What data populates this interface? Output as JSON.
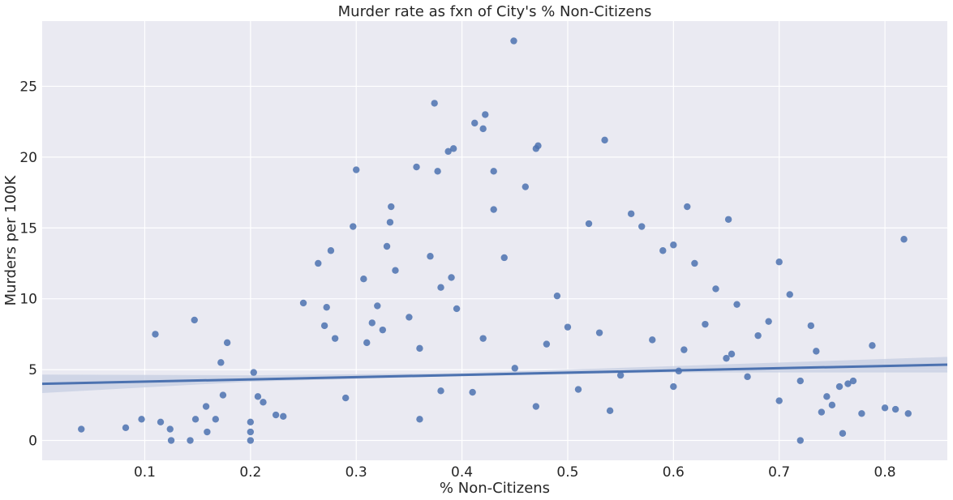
{
  "chart_data": {
    "type": "scatter",
    "title": "Murder rate as fxn of City's % Non-Citizens",
    "xlabel": "% Non-Citizens",
    "ylabel": "Murders per 100K",
    "xlim": [
      0.003,
      0.859
    ],
    "ylim": [
      -1.4,
      29.6
    ],
    "xticks": [
      0.1,
      0.2,
      0.3,
      0.4,
      0.5,
      0.6,
      0.7,
      0.8
    ],
    "xtick_labels": [
      "0.1",
      "0.2",
      "0.3",
      "0.4",
      "0.5",
      "0.6",
      "0.7",
      "0.8"
    ],
    "yticks": [
      0,
      5,
      10,
      15,
      20,
      25
    ],
    "ytick_labels": [
      "0",
      "5",
      "10",
      "15",
      "20",
      "25"
    ],
    "grid": true,
    "colors": {
      "point": "#4c72b0",
      "line": "#4c72b0",
      "band": "#c5cde2",
      "background": "#eaeaf2",
      "grid": "#ffffff",
      "text": "#262626"
    },
    "regression": {
      "x": [
        0.003,
        0.859
      ],
      "y": [
        4.0,
        5.35
      ]
    },
    "confidence_band": {
      "x": [
        0.003,
        0.2,
        0.4,
        0.6,
        0.859
      ],
      "lower": [
        3.35,
        4.15,
        4.55,
        4.8,
        4.8
      ],
      "upper": [
        4.65,
        4.6,
        4.75,
        5.25,
        5.9
      ]
    },
    "points": {
      "x": [
        0.04,
        0.082,
        0.097,
        0.11,
        0.115,
        0.124,
        0.125,
        0.143,
        0.147,
        0.148,
        0.158,
        0.159,
        0.167,
        0.172,
        0.174,
        0.178,
        0.2,
        0.2,
        0.2,
        0.203,
        0.207,
        0.212,
        0.224,
        0.231,
        0.264,
        0.272,
        0.276,
        0.297,
        0.3,
        0.307,
        0.333,
        0.357,
        0.374,
        0.377,
        0.387,
        0.392,
        0.412,
        0.42,
        0.422,
        0.43,
        0.449,
        0.47,
        0.472,
        0.535,
        0.6,
        0.613,
        0.652,
        0.818,
        0.822,
        0.8,
        0.788,
        0.75,
        0.735,
        0.72,
        0.332,
        0.329,
        0.337,
        0.37,
        0.38,
        0.39,
        0.395,
        0.43,
        0.44,
        0.46,
        0.49,
        0.52,
        0.56,
        0.57,
        0.59,
        0.62,
        0.64,
        0.66,
        0.7,
        0.71,
        0.73,
        0.25,
        0.27,
        0.28,
        0.29,
        0.31,
        0.315,
        0.32,
        0.325,
        0.35,
        0.36,
        0.42,
        0.48,
        0.5,
        0.53,
        0.58,
        0.61,
        0.63,
        0.655,
        0.68,
        0.69,
        0.6,
        0.36,
        0.38,
        0.41,
        0.47,
        0.51,
        0.54,
        0.67,
        0.7,
        0.72,
        0.74,
        0.745,
        0.757,
        0.76,
        0.765,
        0.77,
        0.778,
        0.81,
        0.45,
        0.55,
        0.65,
        0.605
      ],
      "y": [
        0.8,
        0.9,
        1.5,
        7.5,
        1.3,
        0.8,
        0.0,
        0.0,
        8.5,
        1.5,
        2.4,
        0.6,
        1.5,
        5.5,
        3.2,
        6.9,
        1.3,
        0.6,
        0.0,
        4.8,
        3.1,
        2.7,
        1.8,
        1.7,
        12.5,
        9.4,
        13.4,
        15.1,
        19.1,
        11.4,
        16.5,
        19.3,
        23.8,
        19.0,
        20.4,
        20.6,
        22.4,
        22.0,
        23.0,
        19.0,
        28.2,
        20.6,
        20.8,
        21.2,
        13.8,
        16.5,
        15.6,
        14.2,
        1.9,
        2.3,
        6.7,
        2.5,
        6.3,
        0.0,
        15.4,
        13.7,
        12.0,
        13.0,
        10.8,
        11.5,
        9.3,
        16.3,
        12.9,
        17.9,
        10.2,
        15.3,
        16.0,
        15.1,
        13.4,
        12.5,
        10.7,
        9.6,
        12.6,
        10.3,
        8.1,
        9.7,
        8.1,
        7.2,
        3.0,
        6.9,
        8.3,
        9.5,
        7.8,
        8.7,
        6.5,
        7.2,
        6.8,
        8.0,
        7.6,
        7.1,
        6.4,
        8.2,
        6.1,
        7.4,
        8.4,
        3.8,
        1.5,
        3.5,
        3.4,
        2.4,
        3.6,
        2.1,
        4.5,
        2.8,
        4.2,
        2.0,
        3.1,
        3.8,
        0.5,
        4.0,
        4.2,
        1.9,
        2.2,
        5.1,
        4.6,
        5.8,
        4.9
      ]
    }
  }
}
